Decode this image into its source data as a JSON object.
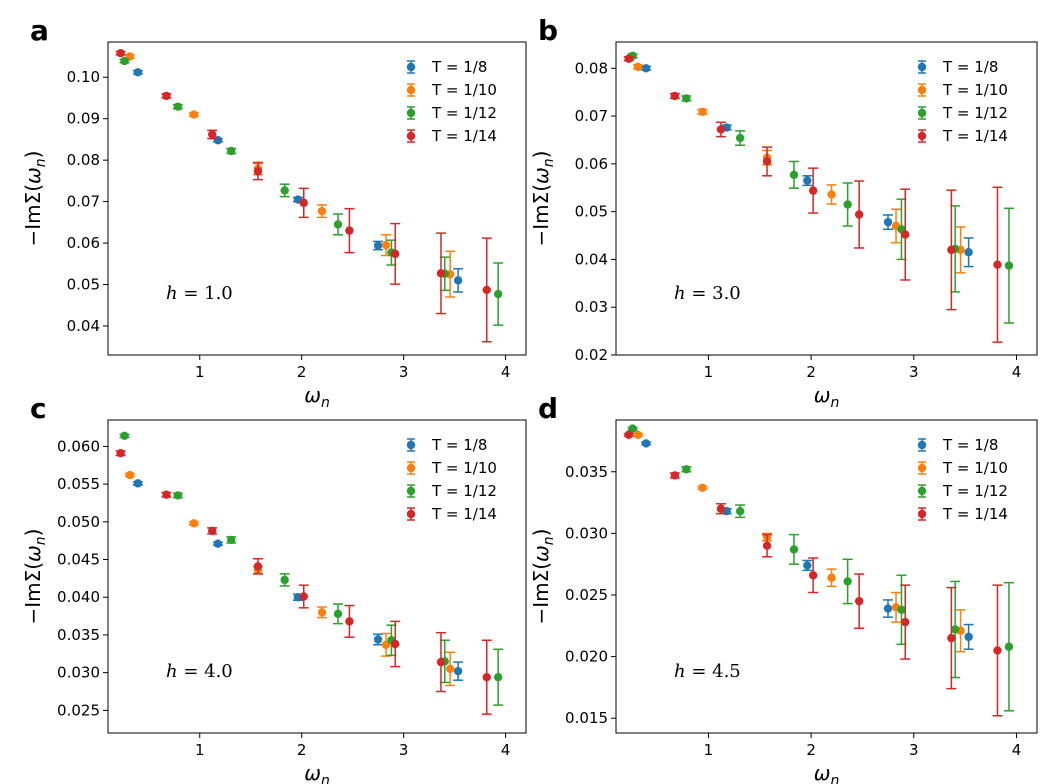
{
  "chart_data": [
    {
      "type": "scatter",
      "panel": "a",
      "annotation": "h = 1.0",
      "xlabel": "ω_n",
      "ylabel": "−ImΣ(ω_n)",
      "xlim": [
        0.1,
        4.2
      ],
      "ylim": [
        0.033,
        0.1085
      ],
      "xticks": [
        1,
        2,
        3,
        4
      ],
      "yticks": [
        0.04,
        0.05,
        0.06,
        0.07,
        0.08,
        0.09,
        0.1
      ],
      "ytick_labels": [
        "0.04",
        "0.05",
        "0.06",
        "0.07",
        "0.08",
        "0.09",
        "0.10"
      ],
      "legend_position": "top-right",
      "series": [
        {
          "name": "T = 1/8",
          "color": "#1f77b4",
          "x": [
            0.393,
            1.178,
            1.963,
            2.749,
            3.534
          ],
          "y": [
            0.1012,
            0.0848,
            0.0705,
            0.0594,
            0.051
          ],
          "err": [
            0.0004,
            0.0004,
            0.0005,
            0.001,
            0.0028
          ]
        },
        {
          "name": "T = 1/10",
          "color": "#ff7f0e",
          "x": [
            0.314,
            0.942,
            1.571,
            2.199,
            2.827,
            3.456
          ],
          "y": [
            0.105,
            0.091,
            0.078,
            0.0677,
            0.0595,
            0.0525
          ],
          "err": [
            0.0004,
            0.0004,
            0.0015,
            0.0015,
            0.0025,
            0.0055
          ]
        },
        {
          "name": "T = 1/12",
          "color": "#2ca02c",
          "x": [
            0.262,
            0.785,
            1.309,
            1.833,
            2.356,
            2.88,
            3.403,
            3.927
          ],
          "y": [
            0.1039,
            0.0929,
            0.0822,
            0.0727,
            0.0645,
            0.0577,
            0.0526,
            0.0477
          ],
          "err": [
            0.0004,
            0.0005,
            0.0006,
            0.0015,
            0.0025,
            0.003,
            0.004,
            0.0075
          ]
        },
        {
          "name": "T = 1/14",
          "color": "#d62728",
          "x": [
            0.224,
            0.673,
            1.122,
            1.571,
            2.02,
            2.468,
            2.917,
            3.366,
            3.815
          ],
          "y": [
            0.1058,
            0.0955,
            0.0862,
            0.0773,
            0.0697,
            0.063,
            0.0574,
            0.0527,
            0.0487
          ],
          "err": [
            0.0004,
            0.0005,
            0.001,
            0.002,
            0.0035,
            0.0053,
            0.0073,
            0.0097,
            0.0125
          ]
        }
      ]
    },
    {
      "type": "scatter",
      "panel": "b",
      "annotation": "h = 3.0",
      "xlabel": "ω_n",
      "ylabel": "−ImΣ(ω_n)",
      "xlim": [
        0.1,
        4.2
      ],
      "ylim": [
        0.02,
        0.0855
      ],
      "xticks": [
        1,
        2,
        3,
        4
      ],
      "yticks": [
        0.02,
        0.03,
        0.04,
        0.05,
        0.06,
        0.07,
        0.08
      ],
      "ytick_labels": [
        "0.02",
        "0.03",
        "0.04",
        "0.05",
        "0.06",
        "0.07",
        "0.08"
      ],
      "legend_position": "top-right",
      "series": [
        {
          "name": "T = 1/8",
          "color": "#1f77b4",
          "x": [
            0.393,
            1.178,
            1.963,
            2.749,
            3.534
          ],
          "y": [
            0.08,
            0.0676,
            0.0565,
            0.0478,
            0.0415
          ],
          "err": [
            0.0004,
            0.0005,
            0.001,
            0.0015,
            0.003
          ]
        },
        {
          "name": "T = 1/10",
          "color": "#ff7f0e",
          "x": [
            0.314,
            0.942,
            1.571,
            2.199,
            2.827,
            3.456
          ],
          "y": [
            0.0803,
            0.0709,
            0.0613,
            0.0536,
            0.047,
            0.042
          ],
          "err": [
            0.0004,
            0.0005,
            0.0015,
            0.002,
            0.0035,
            0.0048
          ]
        },
        {
          "name": "T = 1/12",
          "color": "#2ca02c",
          "x": [
            0.262,
            0.785,
            1.309,
            1.833,
            2.356,
            2.88,
            3.403,
            3.927
          ],
          "y": [
            0.0826,
            0.0737,
            0.0654,
            0.0577,
            0.0515,
            0.0463,
            0.0422,
            0.0387
          ],
          "err": [
            0.0004,
            0.0005,
            0.0015,
            0.0028,
            0.0045,
            0.0063,
            0.009,
            0.012
          ]
        },
        {
          "name": "T = 1/14",
          "color": "#d62728",
          "x": [
            0.224,
            0.673,
            1.122,
            1.571,
            2.02,
            2.468,
            2.917,
            3.366,
            3.815
          ],
          "y": [
            0.082,
            0.0742,
            0.0672,
            0.0605,
            0.0544,
            0.0494,
            0.0452,
            0.042,
            0.0389
          ],
          "err": [
            0.0004,
            0.0005,
            0.0015,
            0.003,
            0.0047,
            0.007,
            0.0095,
            0.0125,
            0.0162
          ]
        }
      ]
    },
    {
      "type": "scatter",
      "panel": "c",
      "annotation": "h = 4.0",
      "xlabel": "ω_n",
      "ylabel": "−ImΣ(ω_n)",
      "xlim": [
        0.1,
        4.2
      ],
      "ylim": [
        0.022,
        0.0635
      ],
      "xticks": [
        1,
        2,
        3,
        4
      ],
      "yticks": [
        0.025,
        0.03,
        0.035,
        0.04,
        0.045,
        0.05,
        0.055,
        0.06
      ],
      "ytick_labels": [
        "0.025",
        "0.030",
        "0.035",
        "0.040",
        "0.045",
        "0.050",
        "0.055",
        "0.060"
      ],
      "legend_position": "top-right",
      "series": [
        {
          "name": "T = 1/8",
          "color": "#1f77b4",
          "x": [
            0.393,
            1.178,
            1.963,
            2.749,
            3.534
          ],
          "y": [
            0.0551,
            0.0471,
            0.04,
            0.0344,
            0.0302
          ],
          "err": [
            0.0002,
            0.0002,
            0.0004,
            0.0007,
            0.0012
          ]
        },
        {
          "name": "T = 1/10",
          "color": "#ff7f0e",
          "x": [
            0.314,
            0.942,
            1.571,
            2.199,
            2.827,
            3.456
          ],
          "y": [
            0.0562,
            0.0498,
            0.0436,
            0.038,
            0.0337,
            0.0305
          ],
          "err": [
            0.0002,
            0.0002,
            0.0005,
            0.0007,
            0.0015,
            0.0022
          ]
        },
        {
          "name": "T = 1/12",
          "color": "#2ca02c",
          "x": [
            0.262,
            0.785,
            1.309,
            1.833,
            2.356,
            2.88,
            3.403,
            3.927
          ],
          "y": [
            0.0614,
            0.0535,
            0.0476,
            0.0423,
            0.0378,
            0.0343,
            0.0315,
            0.0294
          ],
          "err": [
            0.0002,
            0.0003,
            0.0004,
            0.0008,
            0.0013,
            0.002,
            0.0028,
            0.0037
          ]
        },
        {
          "name": "T = 1/14",
          "color": "#d62728",
          "x": [
            0.224,
            0.673,
            1.122,
            1.571,
            2.02,
            2.468,
            2.917,
            3.366,
            3.815
          ],
          "y": [
            0.0591,
            0.0536,
            0.0488,
            0.0441,
            0.0401,
            0.0368,
            0.0338,
            0.0314,
            0.0294
          ],
          "err": [
            0.0003,
            0.0003,
            0.0004,
            0.001,
            0.0015,
            0.0021,
            0.003,
            0.0039,
            0.0049
          ]
        }
      ]
    },
    {
      "type": "scatter",
      "panel": "d",
      "annotation": "h = 4.5",
      "xlabel": "ω_n",
      "ylabel": "−ImΣ(ω_n)",
      "xlim": [
        0.1,
        4.2
      ],
      "ylim": [
        0.0138,
        0.0392
      ],
      "xticks": [
        1,
        2,
        3,
        4
      ],
      "yticks": [
        0.015,
        0.02,
        0.025,
        0.03,
        0.035
      ],
      "ytick_labels": [
        "0.015",
        "0.020",
        "0.025",
        "0.030",
        "0.035"
      ],
      "legend_position": "top-right",
      "series": [
        {
          "name": "T = 1/8",
          "color": "#1f77b4",
          "x": [
            0.393,
            1.178,
            1.963,
            2.749,
            3.534
          ],
          "y": [
            0.0373,
            0.0318,
            0.0274,
            0.0239,
            0.0216
          ],
          "err": [
            0.0001,
            0.0002,
            0.0004,
            0.0007,
            0.001
          ]
        },
        {
          "name": "T = 1/10",
          "color": "#ff7f0e",
          "x": [
            0.314,
            0.942,
            1.571,
            2.199,
            2.827,
            3.456
          ],
          "y": [
            0.038,
            0.0337,
            0.0297,
            0.0264,
            0.024,
            0.0221
          ],
          "err": [
            0.0001,
            0.0001,
            0.0003,
            0.0007,
            0.0012,
            0.0017
          ]
        },
        {
          "name": "T = 1/12",
          "color": "#2ca02c",
          "x": [
            0.262,
            0.785,
            1.309,
            1.833,
            2.356,
            2.88,
            3.403,
            3.927
          ],
          "y": [
            0.0385,
            0.0352,
            0.0318,
            0.0287,
            0.0261,
            0.0238,
            0.0222,
            0.0208
          ],
          "err": [
            0.0001,
            0.0002,
            0.0005,
            0.0012,
            0.0018,
            0.0028,
            0.0039,
            0.0052
          ]
        },
        {
          "name": "T = 1/14",
          "color": "#d62728",
          "x": [
            0.224,
            0.673,
            1.122,
            1.571,
            2.02,
            2.468,
            2.917,
            3.366,
            3.815
          ],
          "y": [
            0.038,
            0.0347,
            0.032,
            0.029,
            0.0266,
            0.0245,
            0.0228,
            0.0215,
            0.0205
          ],
          "err": [
            0.0001,
            0.0002,
            0.0004,
            0.0009,
            0.0014,
            0.0022,
            0.003,
            0.0041,
            0.0053
          ]
        }
      ]
    }
  ]
}
